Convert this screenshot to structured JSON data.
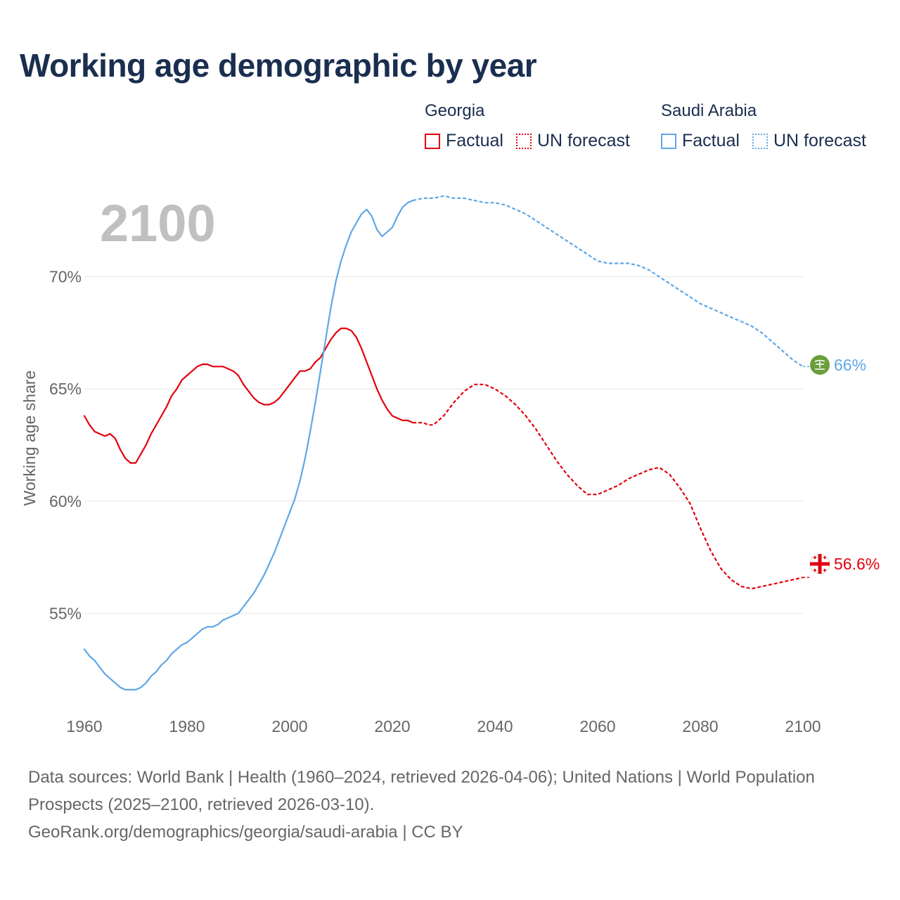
{
  "title": "Working age demographic by year",
  "legend": {
    "groups": [
      {
        "country": "Georgia",
        "color": "#e3000f",
        "items": [
          {
            "label": "Factual",
            "style": "solid"
          },
          {
            "label": "UN forecast",
            "style": "dotted"
          }
        ]
      },
      {
        "country": "Saudi Arabia",
        "color": "#5fa7e6",
        "items": [
          {
            "label": "Factual",
            "style": "solid"
          },
          {
            "label": "UN forecast",
            "style": "dotted"
          }
        ]
      }
    ]
  },
  "year_display": "2100",
  "chart_data": {
    "type": "line",
    "title": "Working age demographic by year",
    "xlabel": "",
    "ylabel": "Working age share",
    "xlim": [
      1960,
      2100
    ],
    "ylim": [
      51,
      74.5
    ],
    "xticks": [
      1960,
      1980,
      2000,
      2020,
      2040,
      2060,
      2080,
      2100
    ],
    "yticks": [
      55,
      60,
      65,
      70
    ],
    "ytick_labels": [
      "55%",
      "60%",
      "65%",
      "70%"
    ],
    "grid": "horizontal",
    "forecast_start": 2024,
    "series": [
      {
        "name": "Georgia",
        "color": "#e3000f",
        "end_label": "56.6%",
        "x": [
          1960,
          1961,
          1962,
          1963,
          1964,
          1965,
          1966,
          1967,
          1968,
          1969,
          1970,
          1971,
          1972,
          1973,
          1974,
          1975,
          1976,
          1977,
          1978,
          1979,
          1980,
          1981,
          1982,
          1983,
          1984,
          1985,
          1986,
          1987,
          1988,
          1989,
          1990,
          1991,
          1992,
          1993,
          1994,
          1995,
          1996,
          1997,
          1998,
          1999,
          2000,
          2001,
          2002,
          2003,
          2004,
          2005,
          2006,
          2007,
          2008,
          2009,
          2010,
          2011,
          2012,
          2013,
          2014,
          2015,
          2016,
          2017,
          2018,
          2019,
          2020,
          2021,
          2022,
          2023,
          2024,
          2025,
          2026,
          2027,
          2028,
          2030,
          2032,
          2034,
          2036,
          2038,
          2040,
          2042,
          2044,
          2046,
          2048,
          2050,
          2052,
          2054,
          2056,
          2058,
          2060,
          2062,
          2064,
          2066,
          2068,
          2070,
          2072,
          2074,
          2076,
          2078,
          2080,
          2082,
          2084,
          2086,
          2088,
          2090,
          2092,
          2094,
          2096,
          2098,
          2100
        ],
        "values": [
          63.8,
          63.4,
          63.1,
          63.0,
          62.9,
          63.0,
          62.8,
          62.3,
          61.9,
          61.7,
          61.7,
          62.1,
          62.5,
          63.0,
          63.4,
          63.8,
          64.2,
          64.7,
          65.0,
          65.4,
          65.6,
          65.8,
          66.0,
          66.1,
          66.1,
          66.0,
          66.0,
          66.0,
          65.9,
          65.8,
          65.6,
          65.2,
          64.9,
          64.6,
          64.4,
          64.3,
          64.3,
          64.4,
          64.6,
          64.9,
          65.2,
          65.5,
          65.8,
          65.8,
          65.9,
          66.2,
          66.4,
          66.8,
          67.2,
          67.5,
          67.7,
          67.7,
          67.6,
          67.3,
          66.8,
          66.2,
          65.6,
          65.0,
          64.5,
          64.1,
          63.8,
          63.7,
          63.6,
          63.6,
          63.5,
          63.5,
          63.5,
          63.4,
          63.4,
          63.8,
          64.4,
          64.9,
          65.2,
          65.2,
          65.0,
          64.7,
          64.3,
          63.8,
          63.2,
          62.5,
          61.8,
          61.2,
          60.7,
          60.3,
          60.3,
          60.5,
          60.7,
          61.0,
          61.2,
          61.4,
          61.5,
          61.2,
          60.6,
          59.9,
          58.8,
          57.8,
          57.0,
          56.5,
          56.2,
          56.1,
          56.2,
          56.3,
          56.4,
          56.5,
          56.6
        ]
      },
      {
        "name": "Saudi Arabia",
        "color": "#5fa7e6",
        "end_label": "66%",
        "x": [
          1960,
          1961,
          1962,
          1963,
          1964,
          1965,
          1966,
          1967,
          1968,
          1969,
          1970,
          1971,
          1972,
          1973,
          1974,
          1975,
          1976,
          1977,
          1978,
          1979,
          1980,
          1981,
          1982,
          1983,
          1984,
          1985,
          1986,
          1987,
          1988,
          1989,
          1990,
          1991,
          1992,
          1993,
          1994,
          1995,
          1996,
          1997,
          1998,
          1999,
          2000,
          2001,
          2002,
          2003,
          2004,
          2005,
          2006,
          2007,
          2008,
          2009,
          2010,
          2011,
          2012,
          2013,
          2014,
          2015,
          2016,
          2017,
          2018,
          2019,
          2020,
          2021,
          2022,
          2023,
          2024,
          2026,
          2028,
          2030,
          2032,
          2034,
          2036,
          2038,
          2040,
          2042,
          2044,
          2046,
          2048,
          2050,
          2052,
          2054,
          2056,
          2058,
          2060,
          2062,
          2064,
          2066,
          2068,
          2070,
          2072,
          2074,
          2076,
          2078,
          2080,
          2082,
          2084,
          2086,
          2088,
          2090,
          2092,
          2094,
          2096,
          2098,
          2100
        ],
        "values": [
          53.4,
          53.1,
          52.9,
          52.6,
          52.3,
          52.1,
          51.9,
          51.7,
          51.6,
          51.6,
          51.6,
          51.7,
          51.9,
          52.2,
          52.4,
          52.7,
          52.9,
          53.2,
          53.4,
          53.6,
          53.7,
          53.9,
          54.1,
          54.3,
          54.4,
          54.4,
          54.5,
          54.7,
          54.8,
          54.9,
          55.0,
          55.3,
          55.6,
          55.9,
          56.3,
          56.7,
          57.2,
          57.7,
          58.3,
          58.9,
          59.5,
          60.1,
          60.9,
          61.9,
          63.1,
          64.4,
          65.8,
          67.2,
          68.6,
          69.8,
          70.7,
          71.4,
          72.0,
          72.4,
          72.8,
          73.0,
          72.7,
          72.1,
          71.8,
          72.0,
          72.2,
          72.7,
          73.1,
          73.3,
          73.4,
          73.5,
          73.5,
          73.6,
          73.5,
          73.5,
          73.4,
          73.3,
          73.3,
          73.2,
          73.0,
          72.8,
          72.5,
          72.2,
          71.9,
          71.6,
          71.3,
          71.0,
          70.7,
          70.6,
          70.6,
          70.6,
          70.5,
          70.3,
          70.0,
          69.7,
          69.4,
          69.1,
          68.8,
          68.6,
          68.4,
          68.2,
          68.0,
          67.8,
          67.5,
          67.1,
          66.7,
          66.3,
          66.0
        ]
      }
    ]
  },
  "footer": {
    "sources": "Data sources: World Bank | Health (1960–2024, retrieved 2026-04-06); United Nations | World Population Prospects (2025–2100, retrieved 2026-03-10).",
    "attribution": "GeoRank.org/demographics/georgia/saudi-arabia | CC BY"
  }
}
